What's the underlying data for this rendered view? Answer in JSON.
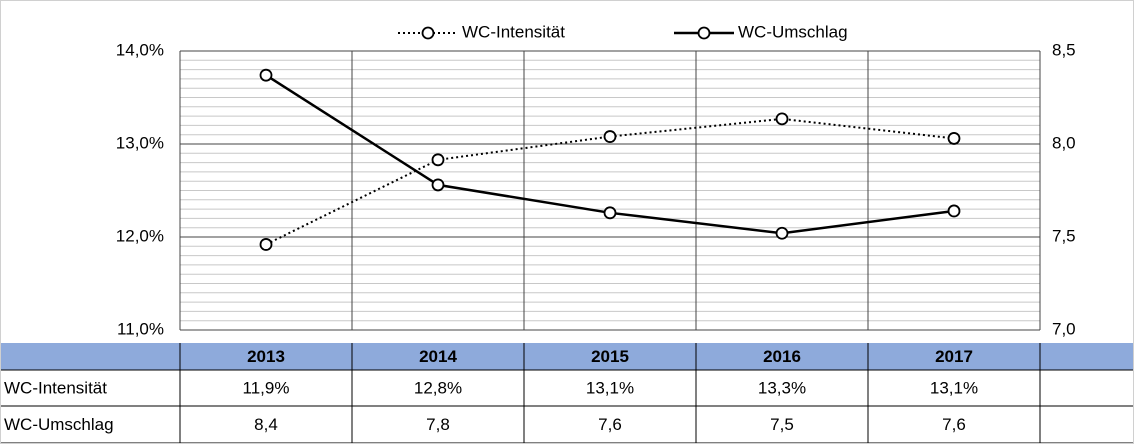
{
  "chart_data": {
    "type": "line",
    "categories": [
      "2013",
      "2014",
      "2015",
      "2016",
      "2017"
    ],
    "series": [
      {
        "name": "WC-Intensität",
        "color": "#000000",
        "dash": "dotted",
        "values": [
          11.92,
          12.83,
          13.08,
          13.27,
          13.06
        ],
        "value_labels": [
          "11,9%",
          "12,8%",
          "13,1%",
          "13,3%",
          "13,1%"
        ]
      },
      {
        "name": "WC-Umschlag",
        "color": "#000000",
        "dash": "solid",
        "axis": "y2",
        "values": [
          8.37,
          7.78,
          7.63,
          7.52,
          7.64
        ],
        "value_labels": [
          "8,4",
          "7,8",
          "7,6",
          "7,5",
          "7,6"
        ]
      }
    ],
    "ylim": [
      11,
      14
    ],
    "yticks": [
      {
        "value": 11,
        "label": "11,0%"
      },
      {
        "value": 12,
        "label": "12,0%"
      },
      {
        "value": 13,
        "label": "13,0%"
      },
      {
        "value": 14,
        "label": "14,0%"
      }
    ],
    "y2lim": [
      7,
      8.5
    ],
    "y2ticks": [
      {
        "value": 7,
        "label": "7,0"
      },
      {
        "value": 7.5,
        "label": "7,5"
      },
      {
        "value": 8,
        "label": "8,0"
      },
      {
        "value": 8.5,
        "label": "8,5"
      }
    ],
    "grid": true,
    "minor_grid_divisions": 10,
    "legend": "top",
    "table_header_color": "#8eaadb"
  }
}
